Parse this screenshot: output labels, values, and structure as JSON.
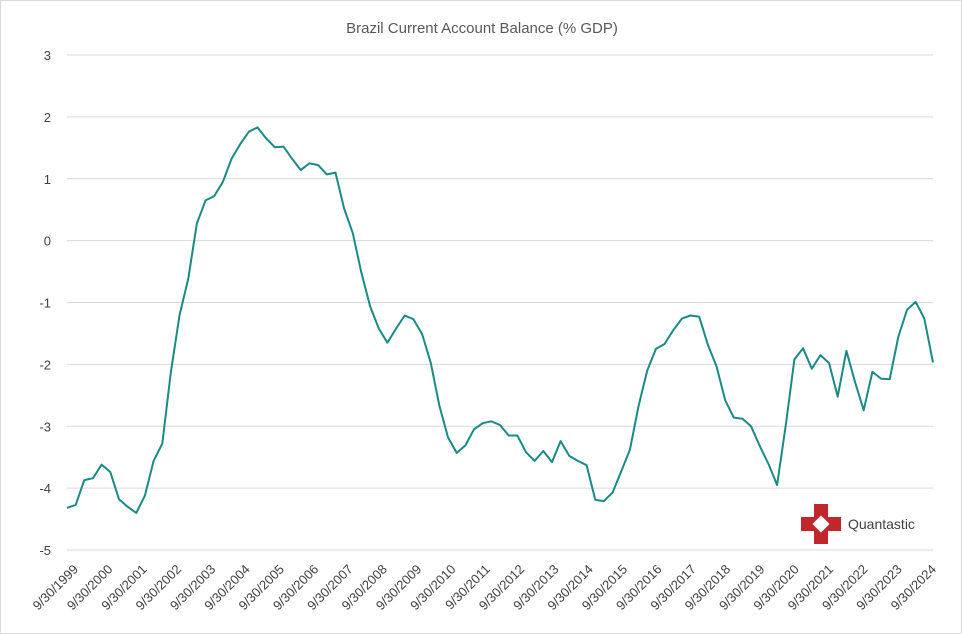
{
  "chart_data": {
    "type": "line",
    "title": "Brazil Current Account Balance (% GDP)",
    "xlabel": "",
    "ylabel": "",
    "ylim": [
      -5,
      3
    ],
    "yticks": [
      "3",
      "2",
      "1",
      "0",
      "-1",
      "-2",
      "-3",
      "-4",
      "-5"
    ],
    "ytick_values": [
      3,
      2,
      1,
      0,
      -1,
      -2,
      -3,
      -4,
      -5
    ],
    "xtick_labels": [
      "9/30/1999",
      "9/30/2000",
      "9/30/2001",
      "9/30/2002",
      "9/30/2003",
      "9/30/2004",
      "9/30/2005",
      "9/30/2006",
      "9/30/2007",
      "9/30/2008",
      "9/30/2009",
      "9/30/2010",
      "9/30/2011",
      "9/30/2012",
      "9/30/2013",
      "9/30/2014",
      "9/30/2015",
      "9/30/2016",
      "9/30/2017",
      "9/30/2018",
      "9/30/2019",
      "9/30/2020",
      "9/30/2021",
      "9/30/2022",
      "9/30/2023",
      "9/30/2024"
    ],
    "series": [
      {
        "name": "Current Account Balance (% GDP)",
        "color": "#1a8a85",
        "values": [
          -4.32,
          -4.27,
          -3.87,
          -3.84,
          -3.62,
          -3.74,
          -4.18,
          -4.3,
          -4.4,
          -4.12,
          -3.56,
          -3.28,
          -2.12,
          -1.2,
          -0.62,
          0.28,
          0.65,
          0.72,
          0.95,
          1.32,
          1.56,
          1.76,
          1.83,
          1.65,
          1.51,
          1.52,
          1.32,
          1.14,
          1.25,
          1.22,
          1.07,
          1.1,
          0.52,
          0.12,
          -0.52,
          -1.06,
          -1.42,
          -1.65,
          -1.42,
          -1.21,
          -1.27,
          -1.51,
          -1.97,
          -2.67,
          -3.18,
          -3.43,
          -3.31,
          -3.05,
          -2.95,
          -2.92,
          -2.98,
          -3.15,
          -3.15,
          -3.42,
          -3.56,
          -3.4,
          -3.58,
          -3.24,
          -3.48,
          -3.56,
          -3.63,
          -4.19,
          -4.21,
          -4.07,
          -3.73,
          -3.38,
          -2.67,
          -2.1,
          -1.75,
          -1.67,
          -1.45,
          -1.26,
          -1.21,
          -1.23,
          -1.68,
          -2.03,
          -2.58,
          -2.86,
          -2.88,
          -3.0,
          -3.32,
          -3.61,
          -3.95,
          -2.98,
          -1.92,
          -1.74,
          -2.07,
          -1.85,
          -1.98,
          -2.52,
          -1.78,
          -2.29,
          -2.74,
          -2.12,
          -2.23,
          -2.24,
          -1.55,
          -1.12,
          -0.99,
          -1.26,
          -1.97
        ]
      }
    ]
  },
  "branding": {
    "logo_text": "Quantastic",
    "logo_color": "#c0272d"
  }
}
